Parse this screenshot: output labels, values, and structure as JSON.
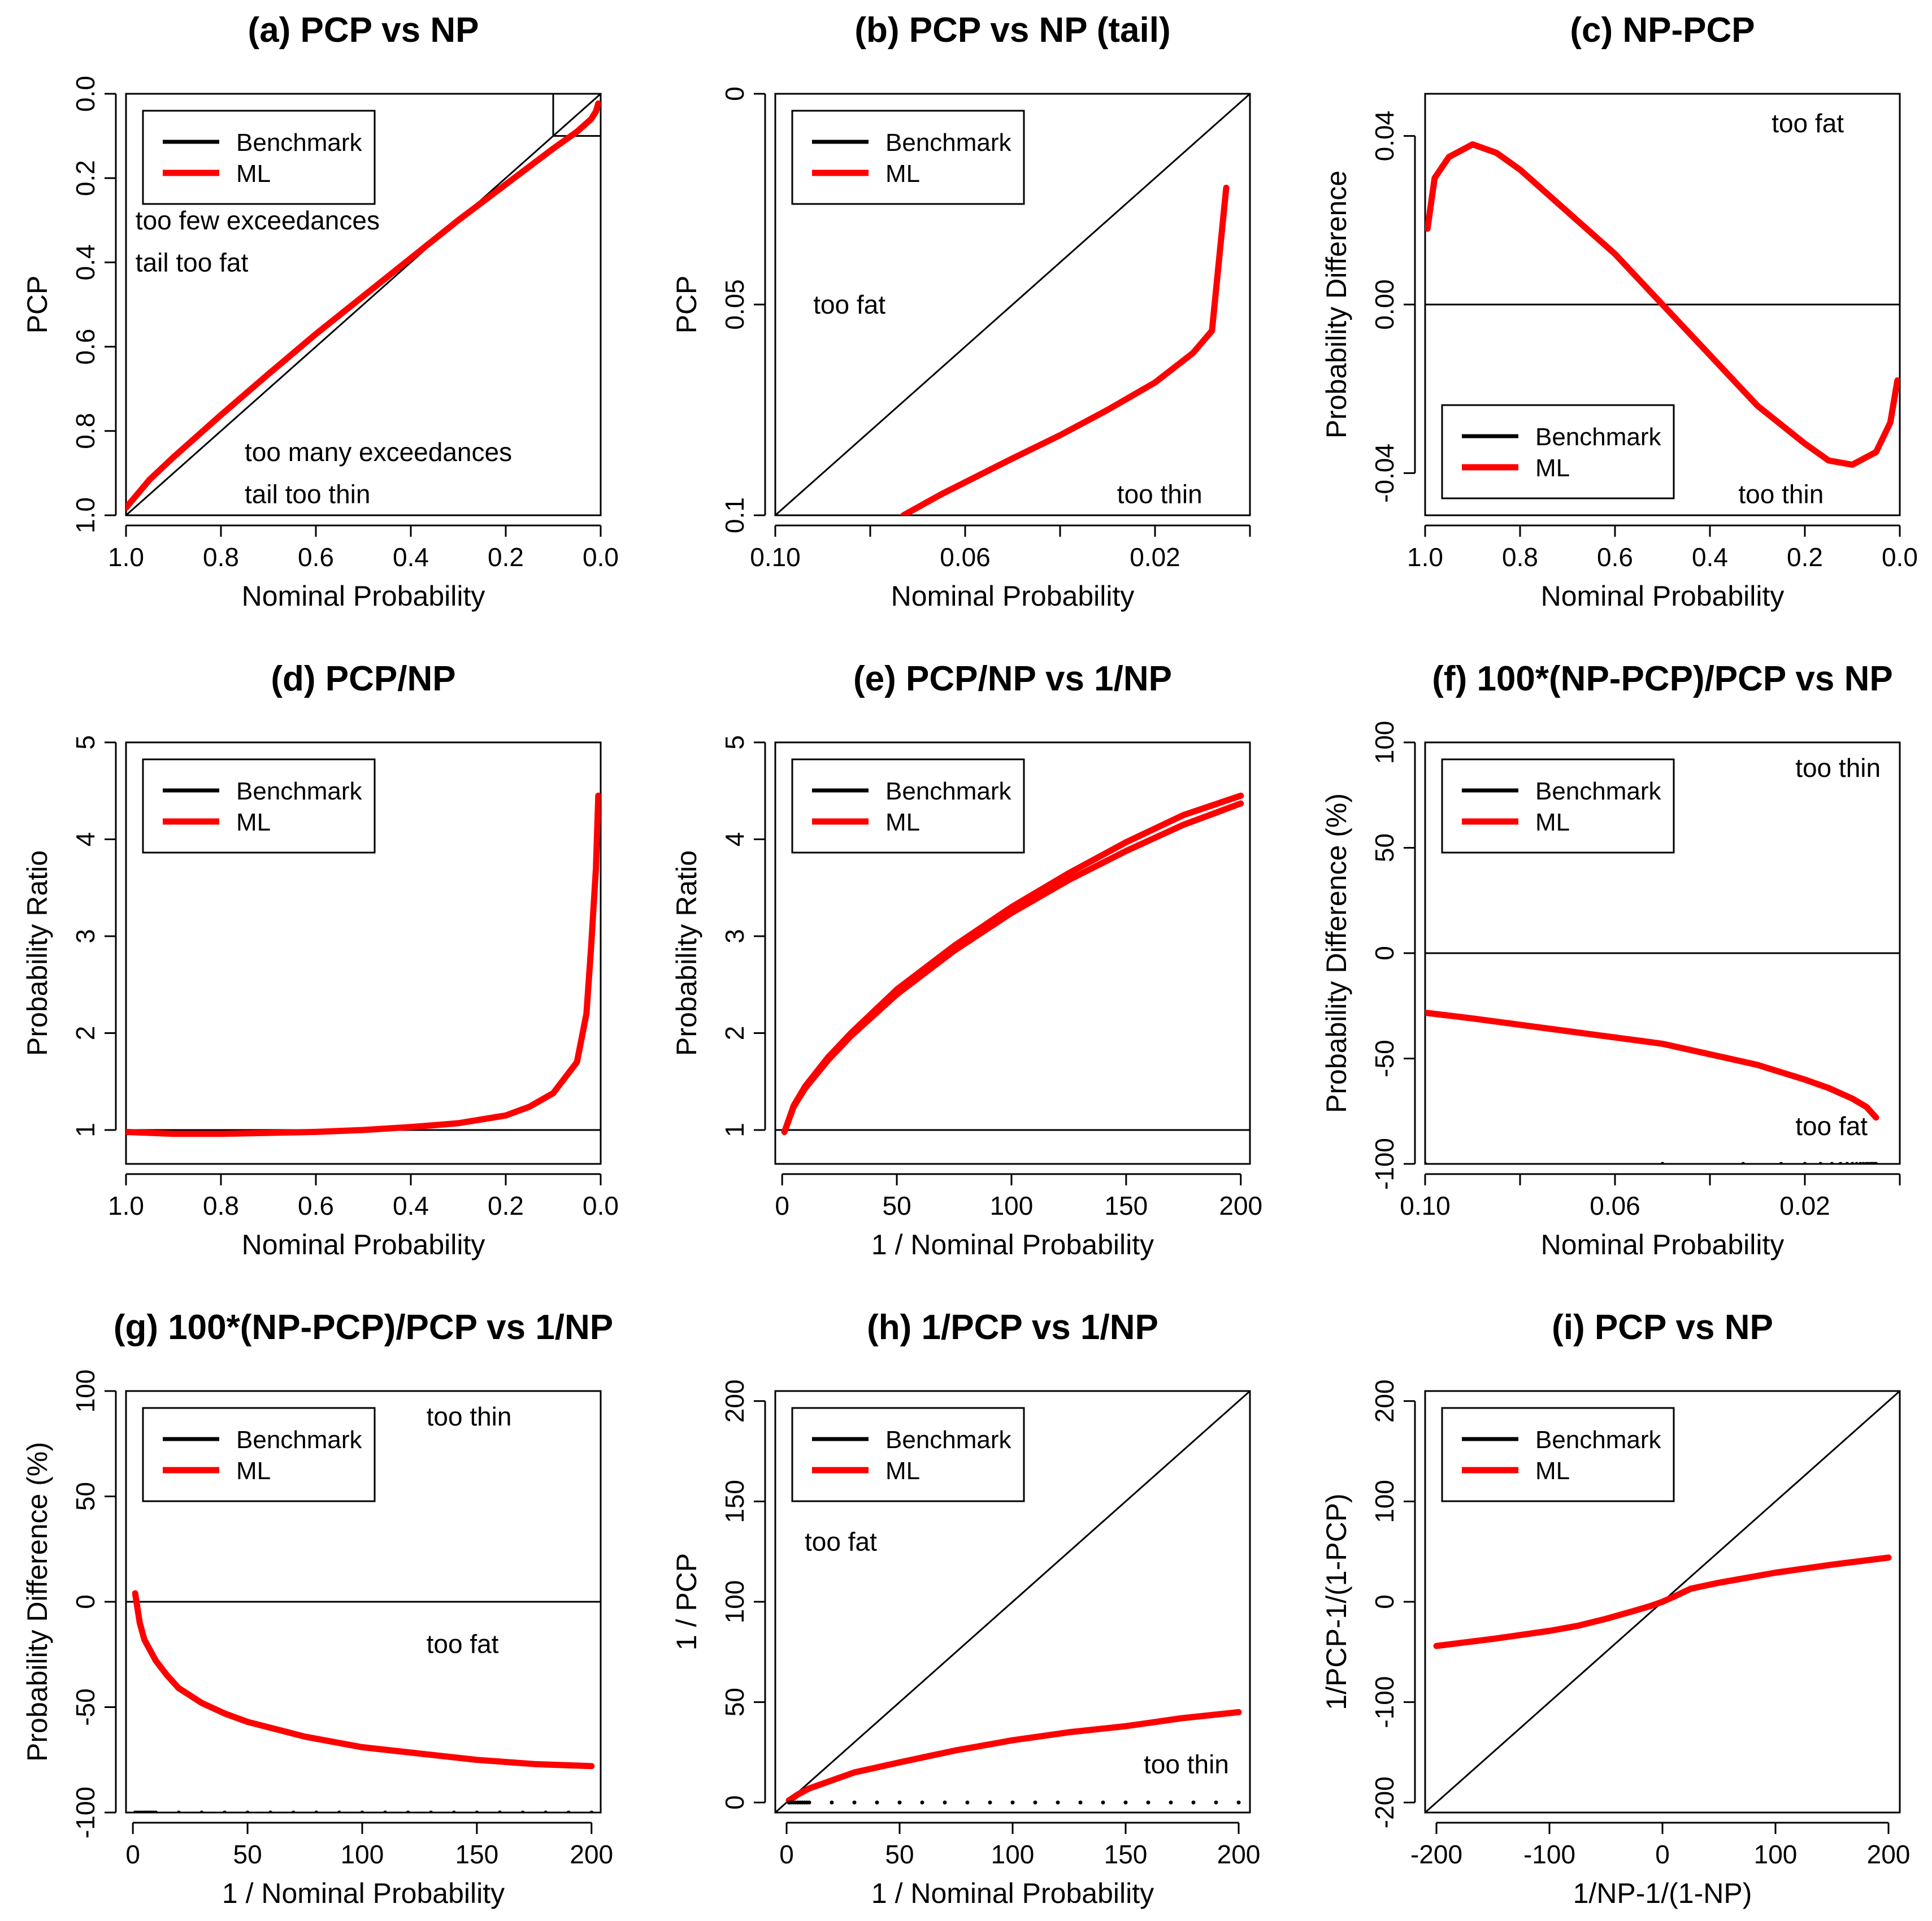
{
  "colors": {
    "benchmark": "#000000",
    "ml": "#ff0000",
    "reference": "#000000"
  },
  "chart_data": [
    {
      "id": "a",
      "type": "line",
      "title": "(a) PCP vs NP",
      "xlabel": "Nominal Probability",
      "ylabel": "PCP",
      "xlim": [
        1.0,
        0.0
      ],
      "ylim": [
        1.0,
        0.0
      ],
      "xticks": [
        1.0,
        0.8,
        0.6,
        0.4,
        0.2,
        0.0
      ],
      "xtick_labels": [
        "1.0",
        "0.8",
        "0.6",
        "0.4",
        "0.2",
        "0.0"
      ],
      "yticks": [
        0.0,
        0.2,
        0.4,
        0.6,
        0.8,
        1.0
      ],
      "ytick_labels": [
        "0.0",
        "0.2",
        "0.4",
        "0.6",
        "0.8",
        "1.0"
      ],
      "legend": {
        "position": "top-left",
        "entries": [
          "Benchmark",
          "ML"
        ]
      },
      "annotations": [
        {
          "text": "too few exceedances",
          "x": 0.98,
          "y": 0.3
        },
        {
          "text": "tail too fat",
          "x": 0.98,
          "y": 0.4
        },
        {
          "text": "too many exceedances",
          "x": 0.75,
          "y": 0.85
        },
        {
          "text": "tail too thin",
          "x": 0.75,
          "y": 0.95
        }
      ],
      "inset_box": {
        "x": [
          0.1,
          0.0
        ],
        "y": [
          0.0,
          0.1
        ]
      },
      "reference_lines": [
        {
          "x": [
            1.0,
            0.0
          ],
          "y": [
            1.0,
            0.0
          ]
        }
      ],
      "series": [
        {
          "name": "ML",
          "x": [
            1.0,
            0.95,
            0.9,
            0.8,
            0.7,
            0.6,
            0.5,
            0.4,
            0.3,
            0.2,
            0.1,
            0.05,
            0.02,
            0.01,
            0.005
          ],
          "y": [
            0.982,
            0.915,
            0.862,
            0.762,
            0.665,
            0.57,
            0.48,
            0.39,
            0.3,
            0.215,
            0.13,
            0.09,
            0.06,
            0.042,
            0.023
          ]
        }
      ]
    },
    {
      "id": "b",
      "type": "line",
      "title": "(b) PCP vs NP (tail)",
      "xlabel": "Nominal Probability",
      "ylabel": "PCP",
      "xlim": [
        0.1,
        0.0
      ],
      "ylim": [
        0.1,
        0.0
      ],
      "xticks": [
        0.1,
        0.08,
        0.06,
        0.04,
        0.02,
        0.0
      ],
      "xtick_labels": [
        "0.10",
        "",
        "0.06",
        "",
        "0.02",
        ""
      ],
      "yticks": [
        0.0,
        0.05,
        0.1
      ],
      "ytick_labels": [
        "0",
        "0.05",
        "0.1"
      ],
      "legend": {
        "position": "top-left",
        "entries": [
          "Benchmark",
          "ML"
        ]
      },
      "annotations": [
        {
          "text": "too fat",
          "x": 0.092,
          "y": 0.05
        },
        {
          "text": "too thin",
          "x": 0.028,
          "y": 0.095
        }
      ],
      "reference_lines": [
        {
          "x": [
            0.1,
            0.0
          ],
          "y": [
            0.1,
            0.0
          ]
        }
      ],
      "series": [
        {
          "name": "ML",
          "x": [
            0.073,
            0.065,
            0.05,
            0.04,
            0.03,
            0.02,
            0.012,
            0.008,
            0.005
          ],
          "y": [
            0.1,
            0.095,
            0.0865,
            0.081,
            0.075,
            0.0685,
            0.0615,
            0.0562,
            0.0223
          ]
        }
      ]
    },
    {
      "id": "c",
      "type": "line",
      "title": "(c) NP-PCP",
      "xlabel": "Nominal Probability",
      "ylabel": "Probability Difference",
      "xlim": [
        1.0,
        0.0
      ],
      "ylim": [
        -0.05,
        0.05
      ],
      "xticks": [
        1.0,
        0.8,
        0.6,
        0.4,
        0.2,
        0.0
      ],
      "xtick_labels": [
        "1.0",
        "0.8",
        "0.6",
        "0.4",
        "0.2",
        "0.0"
      ],
      "yticks": [
        -0.04,
        0.0,
        0.04
      ],
      "ytick_labels": [
        "-0.04",
        "0.00",
        "0.04"
      ],
      "legend": {
        "position": "bottom-left",
        "entries": [
          "Benchmark",
          "ML"
        ]
      },
      "annotations": [
        {
          "text": "too fat",
          "x": 0.27,
          "y": 0.043
        },
        {
          "text": "too thin",
          "x": 0.34,
          "y": -0.045
        }
      ],
      "reference_lines": [
        {
          "x": [
            1.05,
            -0.05
          ],
          "y": [
            0.0,
            0.0
          ]
        }
      ],
      "series": [
        {
          "name": "ML",
          "x": [
            0.995,
            0.98,
            0.95,
            0.9,
            0.85,
            0.8,
            0.7,
            0.6,
            0.5,
            0.4,
            0.3,
            0.2,
            0.15,
            0.1,
            0.05,
            0.02,
            0.005
          ],
          "y": [
            0.018,
            0.03,
            0.035,
            0.038,
            0.036,
            0.032,
            0.022,
            0.012,
            0.0,
            -0.012,
            -0.024,
            -0.033,
            -0.037,
            -0.038,
            -0.035,
            -0.028,
            -0.018
          ]
        }
      ]
    },
    {
      "id": "d",
      "type": "line",
      "title": "(d) PCP/NP",
      "xlabel": "Nominal Probability",
      "ylabel": "Probability Ratio",
      "xlim": [
        1.0,
        0.0
      ],
      "ylim": [
        0.65,
        5.0
      ],
      "xticks": [
        1.0,
        0.8,
        0.6,
        0.4,
        0.2,
        0.0
      ],
      "xtick_labels": [
        "1.0",
        "0.8",
        "0.6",
        "0.4",
        "0.2",
        "0.0"
      ],
      "yticks": [
        1,
        2,
        3,
        4,
        5
      ],
      "ytick_labels": [
        "1",
        "2",
        "3",
        "4",
        "5"
      ],
      "legend": {
        "position": "top-left",
        "entries": [
          "Benchmark",
          "ML"
        ]
      },
      "reference_lines": [
        {
          "x": [
            1.05,
            -0.05
          ],
          "y": [
            1.0,
            1.0
          ]
        }
      ],
      "series": [
        {
          "name": "ML",
          "x": [
            1.0,
            0.9,
            0.8,
            0.7,
            0.6,
            0.5,
            0.4,
            0.3,
            0.2,
            0.15,
            0.1,
            0.05,
            0.03,
            0.02,
            0.01,
            0.005
          ],
          "y": [
            0.98,
            0.96,
            0.96,
            0.97,
            0.98,
            1.0,
            1.03,
            1.07,
            1.15,
            1.24,
            1.38,
            1.7,
            2.2,
            2.9,
            3.7,
            4.45
          ]
        }
      ]
    },
    {
      "id": "e",
      "type": "line",
      "title": "(e) PCP/NP vs 1/NP",
      "xlabel": "1 / Nominal Probability",
      "ylabel": "Probability Ratio",
      "xlim": [
        -3,
        204
      ],
      "ylim": [
        0.65,
        5.0
      ],
      "xticks": [
        0,
        50,
        100,
        150,
        200
      ],
      "xtick_labels": [
        "0",
        "50",
        "100",
        "150",
        "200"
      ],
      "yticks": [
        1,
        2,
        3,
        4,
        5
      ],
      "ytick_labels": [
        "1",
        "2",
        "3",
        "4",
        "5"
      ],
      "legend": {
        "position": "top-left",
        "entries": [
          "Benchmark",
          "ML"
        ]
      },
      "reference_lines": [
        {
          "x": [
            -5,
            210
          ],
          "y": [
            1.0,
            1.0
          ]
        }
      ],
      "series": [
        {
          "name": "ML",
          "x": [
            1,
            5,
            10,
            20,
            30,
            50,
            75,
            100,
            125,
            150,
            175,
            200
          ],
          "y": [
            0.98,
            1.25,
            1.45,
            1.75,
            2.0,
            2.45,
            2.9,
            3.3,
            3.65,
            3.97,
            4.25,
            4.45
          ]
        },
        {
          "name": "ML",
          "x": [
            1,
            5,
            10,
            20,
            30,
            50,
            75,
            100,
            125,
            150,
            175,
            200
          ],
          "y": [
            0.98,
            1.24,
            1.43,
            1.72,
            1.97,
            2.4,
            2.85,
            3.24,
            3.58,
            3.88,
            4.15,
            4.37
          ]
        }
      ]
    },
    {
      "id": "f",
      "type": "line",
      "title": "(f) 100*(NP-PCP)/PCP vs NP",
      "xlabel": "Nominal Probability",
      "ylabel": "Probability Difference (%)",
      "xlim": [
        0.1,
        0.0
      ],
      "ylim": [
        -100,
        100
      ],
      "xticks": [
        0.1,
        0.08,
        0.06,
        0.04,
        0.02,
        0.0
      ],
      "xtick_labels": [
        "0.10",
        "",
        "0.06",
        "",
        "0.02",
        ""
      ],
      "yticks": [
        -100,
        -50,
        0,
        50,
        100
      ],
      "ytick_labels": [
        "-100",
        "-50",
        "0",
        "50",
        "100"
      ],
      "legend": {
        "position": "top-left",
        "entries": [
          "Benchmark",
          "ML"
        ]
      },
      "annotations": [
        {
          "text": "too thin",
          "x": 0.022,
          "y": 88
        },
        {
          "text": "too fat",
          "x": 0.022,
          "y": -82
        }
      ],
      "reference_lines": [
        {
          "x": [
            0.105,
            -0.005
          ],
          "y": [
            0,
            0
          ]
        }
      ],
      "series": [
        {
          "name": "ML",
          "x": [
            0.101,
            0.09,
            0.08,
            0.07,
            0.06,
            0.05,
            0.04,
            0.03,
            0.02,
            0.015,
            0.01,
            0.007,
            0.005
          ],
          "y": [
            -28,
            -31,
            -34,
            -37,
            -40,
            -43,
            -48,
            -53,
            -60,
            -64,
            -69,
            -73,
            -78
          ]
        },
        {
          "name": "Benchmark",
          "x": [
            0.1,
            0.05,
            0.033,
            0.025,
            0.02,
            0.0167,
            0.0143,
            0.0125,
            0.0111,
            0.01,
            0.0091,
            0.0083,
            0.0077,
            0.0071,
            0.0067,
            0.0062,
            0.0059,
            0.0056,
            0.0053,
            0.005
          ],
          "y": [
            -100,
            -100,
            -100,
            -100,
            -100,
            -100,
            -100,
            -100,
            -100,
            -100,
            -100,
            -100,
            -100,
            -100,
            -100,
            -100,
            -100,
            -100,
            -100,
            -100
          ]
        }
      ]
    },
    {
      "id": "g",
      "type": "line",
      "title": "(g) 100*(NP-PCP)/PCP vs 1/NP",
      "xlabel": "1 / Nominal Probability",
      "ylabel": "Probability Difference (%)",
      "xlim": [
        -3,
        204
      ],
      "ylim": [
        -100,
        100
      ],
      "xticks": [
        0,
        50,
        100,
        150,
        200
      ],
      "xtick_labels": [
        "0",
        "50",
        "100",
        "150",
        "200"
      ],
      "yticks": [
        -100,
        -50,
        0,
        50,
        100
      ],
      "ytick_labels": [
        "-100",
        "-50",
        "0",
        "50",
        "100"
      ],
      "legend": {
        "position": "top-left",
        "entries": [
          "Benchmark",
          "ML"
        ]
      },
      "annotations": [
        {
          "text": "too thin",
          "x": 128,
          "y": 88
        },
        {
          "text": "too fat",
          "x": 128,
          "y": -20
        }
      ],
      "reference_lines": [
        {
          "x": [
            -5,
            210
          ],
          "y": [
            0,
            0
          ]
        }
      ],
      "series": [
        {
          "name": "ML",
          "x": [
            1,
            3,
            5,
            10,
            15,
            20,
            30,
            40,
            50,
            75,
            100,
            125,
            150,
            175,
            200
          ],
          "y": [
            4,
            -10,
            -18,
            -28,
            -35,
            -41,
            -48,
            -53,
            -57,
            -64,
            -69,
            -72,
            -75,
            -77,
            -78
          ]
        },
        {
          "name": "Benchmark",
          "x": [
            1,
            2,
            3,
            4,
            5,
            6,
            7,
            8,
            9,
            10,
            20,
            30,
            40,
            50,
            60,
            70,
            80,
            90,
            100,
            110,
            120,
            130,
            140,
            150,
            160,
            170,
            180,
            190,
            200
          ],
          "y": [
            -100,
            -100,
            -100,
            -100,
            -100,
            -100,
            -100,
            -100,
            -100,
            -100,
            -100,
            -100,
            -100,
            -100,
            -100,
            -100,
            -100,
            -100,
            -100,
            -100,
            -100,
            -100,
            -100,
            -100,
            -100,
            -100,
            -100,
            -100,
            -100
          ]
        }
      ]
    },
    {
      "id": "h",
      "type": "line",
      "title": "(h) 1/PCP vs 1/NP",
      "xlabel": "1 / Nominal Probability",
      "ylabel": "1 / PCP",
      "xlim": [
        -5,
        205
      ],
      "ylim": [
        -5,
        205
      ],
      "xticks": [
        0,
        50,
        100,
        150,
        200
      ],
      "xtick_labels": [
        "0",
        "50",
        "100",
        "150",
        "200"
      ],
      "yticks": [
        0,
        50,
        100,
        150,
        200
      ],
      "ytick_labels": [
        "0",
        "50",
        "100",
        "150",
        "200"
      ],
      "legend": {
        "position": "top-left",
        "entries": [
          "Benchmark",
          "ML"
        ]
      },
      "annotations": [
        {
          "text": "too fat",
          "x": 8,
          "y": 130
        },
        {
          "text": "too thin",
          "x": 158,
          "y": 19
        }
      ],
      "reference_lines": [
        {
          "x": [
            -5,
            205
          ],
          "y": [
            -5,
            205
          ]
        }
      ],
      "series": [
        {
          "name": "ML",
          "x": [
            1,
            5,
            10,
            20,
            30,
            50,
            75,
            100,
            125,
            150,
            175,
            200
          ],
          "y": [
            1,
            4,
            7,
            11,
            15,
            20,
            26,
            31,
            35,
            38,
            42,
            45
          ]
        },
        {
          "name": "Benchmark",
          "x": [
            1,
            2,
            3,
            4,
            5,
            6,
            7,
            8,
            9,
            10,
            20,
            30,
            40,
            50,
            60,
            70,
            80,
            90,
            100,
            110,
            120,
            130,
            140,
            150,
            160,
            170,
            180,
            190,
            200
          ],
          "y": [
            0,
            0,
            0,
            0,
            0,
            0,
            0,
            0,
            0,
            0,
            0,
            0,
            0,
            0,
            0,
            0,
            0,
            0,
            0,
            0,
            0,
            0,
            0,
            0,
            0,
            0,
            0,
            0,
            0
          ]
        }
      ]
    },
    {
      "id": "i",
      "type": "line",
      "title": "(i) PCP vs NP",
      "xlabel": "1/NP-1/(1-NP)",
      "ylabel": "1/PCP-1/(1-PCP)",
      "xlim": [
        -210,
        210
      ],
      "ylim": [
        -210,
        210
      ],
      "xticks": [
        -200,
        -100,
        0,
        100,
        200
      ],
      "xtick_labels": [
        "-200",
        "-100",
        "0",
        "100",
        "200"
      ],
      "yticks": [
        -200,
        -100,
        0,
        100,
        200
      ],
      "ytick_labels": [
        "-200",
        "-100",
        "0",
        "100",
        "200"
      ],
      "legend": {
        "position": "top-left",
        "entries": [
          "Benchmark",
          "ML"
        ]
      },
      "reference_lines": [
        {
          "x": [
            -210,
            210
          ],
          "y": [
            -210,
            210
          ]
        }
      ],
      "series": [
        {
          "name": "ML",
          "x": [
            -200,
            -150,
            -100,
            -75,
            -50,
            -25,
            -10,
            0,
            10,
            25,
            50,
            75,
            100,
            150,
            200
          ],
          "y": [
            -44,
            -37,
            -29,
            -24,
            -17,
            -9,
            -4,
            0,
            5,
            13,
            19,
            24,
            29,
            37,
            44
          ]
        }
      ]
    }
  ]
}
